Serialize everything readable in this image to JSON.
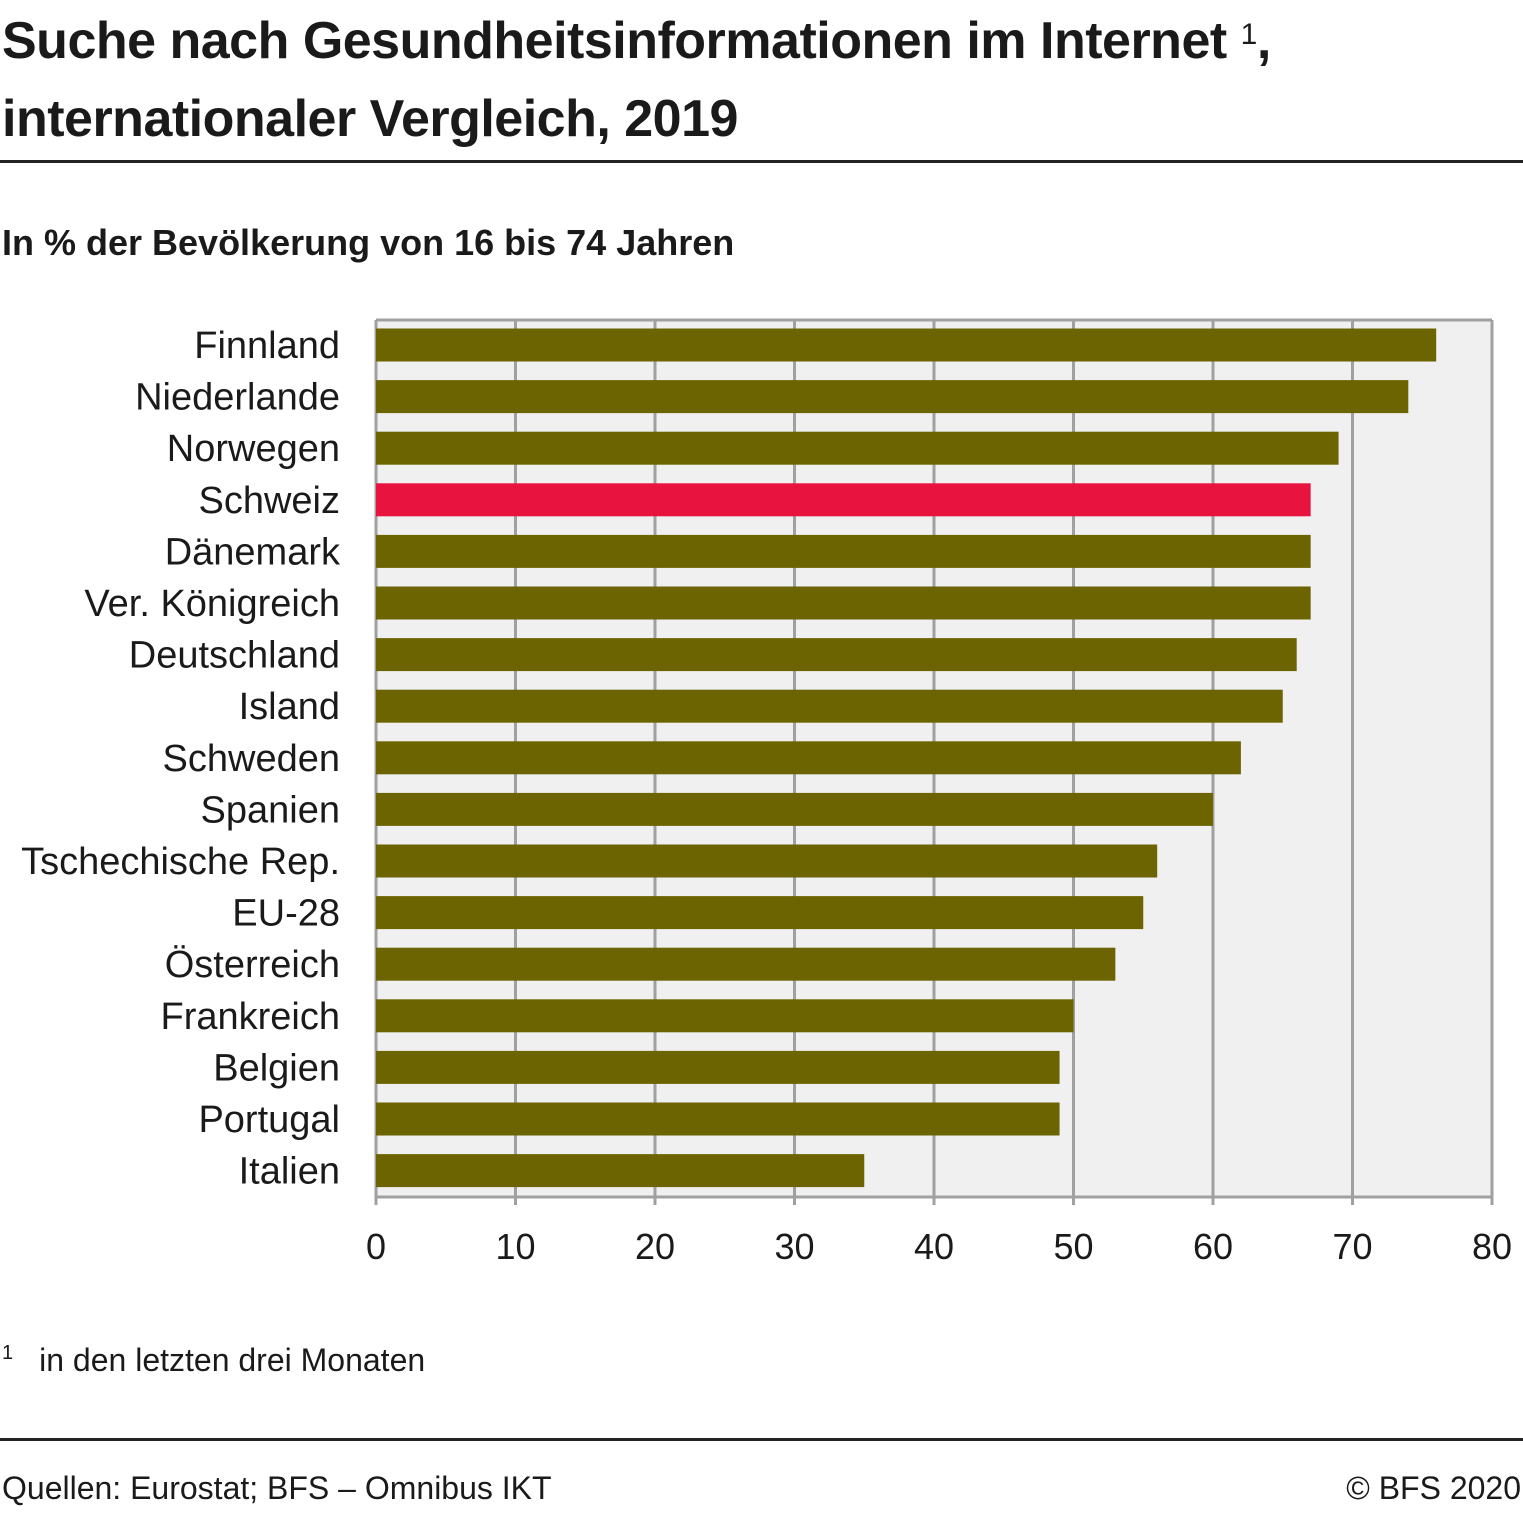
{
  "title_line1": "Suche nach Gesundheitsinformationen im Internet",
  "title_footnote_ref": "1",
  "title_comma": ",",
  "title_line2": "internationaler Vergleich, 2019",
  "subtitle": "In % der Bevölkerung von 16 bis 74 Jahren",
  "footnote_number": "1",
  "footnote_text": "in den letzten drei Monaten",
  "source": "Quellen: Eurostat; BFS – Omnibus IKT",
  "copyright": "© BFS 2020",
  "colors": {
    "bar": "#6b6400",
    "highlight": "#e8133f",
    "plot_bg": "#f0f0f0",
    "grid": "#a0a0a0"
  },
  "chart_data": {
    "type": "bar",
    "orientation": "horizontal",
    "categories": [
      "Finnland",
      "Niederlande",
      "Norwegen",
      "Schweiz",
      "Dänemark",
      "Ver. Königreich",
      "Deutschland",
      "Island",
      "Schweden",
      "Spanien",
      "Tschechische Rep.",
      "EU-28",
      "Österreich",
      "Frankreich",
      "Belgien",
      "Portugal",
      "Italien"
    ],
    "values": [
      76,
      74,
      69,
      67,
      67,
      67,
      66,
      65,
      62,
      60,
      56,
      55,
      53,
      50,
      49,
      49,
      35
    ],
    "highlight": "Schweiz",
    "xlim": [
      0,
      80
    ],
    "xticks": [
      0,
      10,
      20,
      30,
      40,
      50,
      60,
      70,
      80
    ],
    "grid": true
  }
}
